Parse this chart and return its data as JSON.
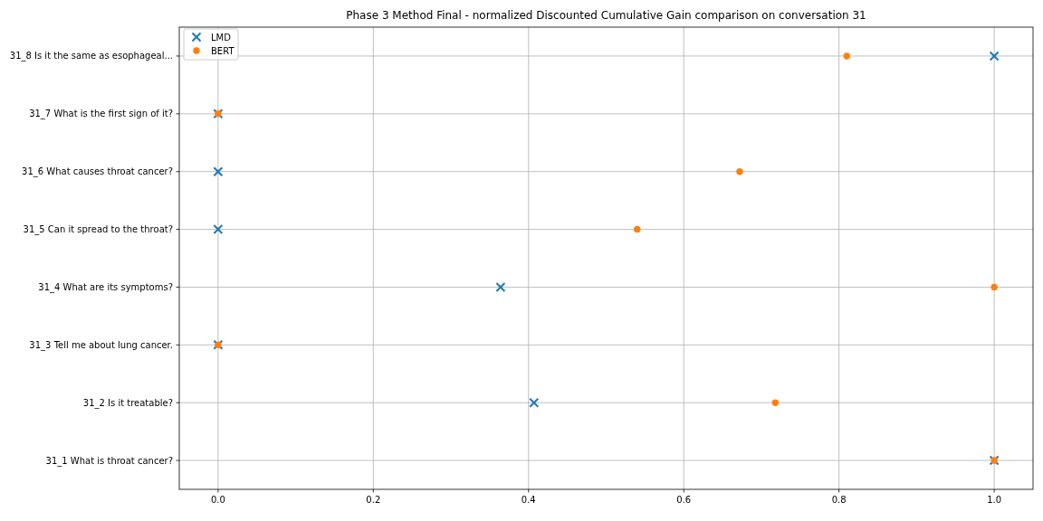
{
  "chart_data": {
    "type": "scatter",
    "orientation": "horizontal",
    "title": "Phase 3 Method Final - normalized Discounted Cumulative Gain comparison on conversation 31",
    "categories": [
      "31_8 Is it the same as esophageal...",
      "31_7 What is the first sign of it?",
      "31_6 What causes throat cancer?",
      "31_5 Can it spread to the throat?",
      "31_4 What are its symptoms?",
      "31_3 Tell me about lung cancer.",
      "31_2 Is it treatable?",
      "31_1 What is throat cancer?"
    ],
    "series": [
      {
        "name": "LMD",
        "color": "#1f77b4",
        "marker": "cross",
        "values": [
          1.0,
          0,
          0,
          0,
          0.364,
          0,
          0.407,
          1.0
        ]
      },
      {
        "name": "BERT",
        "color": "#ff7f0e",
        "marker": "circle",
        "values": [
          0.81,
          0,
          0.672,
          0.54,
          1.0,
          0,
          0.718,
          1.0
        ]
      }
    ],
    "xlim": [
      -0.05,
      1.05
    ],
    "xticks": [
      {
        "value": 0,
        "label": "0.0"
      },
      0.2,
      0.4,
      0.6,
      0.8,
      {
        "value": 1,
        "label": "1.0"
      }
    ],
    "grid": true,
    "legend": "top left"
  }
}
